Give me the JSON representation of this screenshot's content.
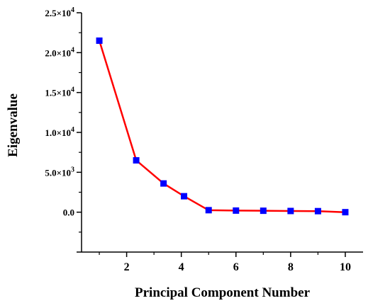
{
  "chart_data": {
    "type": "line",
    "xlabel": "Principal Component Number",
    "ylabel": "Eigenvalue",
    "x": [
      1,
      2.35,
      3.35,
      4.1,
      5,
      6,
      7,
      8,
      9,
      10
    ],
    "series": [
      {
        "values": [
          21500,
          6500,
          3600,
          2000,
          250,
          200,
          180,
          150,
          130,
          0
        ]
      }
    ],
    "xlim": [
      0.35,
      10.65
    ],
    "ylim": [
      -5000,
      25000
    ],
    "x_ticks": [
      2,
      4,
      6,
      8,
      10
    ],
    "x_tick_labels": [
      "2",
      "4",
      "6",
      "8",
      "10"
    ],
    "y_ticks": [
      0,
      5000,
      10000,
      15000,
      20000,
      25000
    ],
    "y_tick_labels": [
      {
        "mantissa": "0.0",
        "exp": ""
      },
      {
        "mantissa": "5.0×10",
        "exp": "3"
      },
      {
        "mantissa": "1.0×10",
        "exp": "4"
      },
      {
        "mantissa": "1.5×10",
        "exp": "4"
      },
      {
        "mantissa": "2.0×10",
        "exp": "4"
      },
      {
        "mantissa": "2.5×10",
        "exp": "4"
      }
    ],
    "grid": false,
    "legend": "none",
    "line_color": "#ff0000",
    "marker_color": "#0000ff",
    "marker": "square"
  }
}
